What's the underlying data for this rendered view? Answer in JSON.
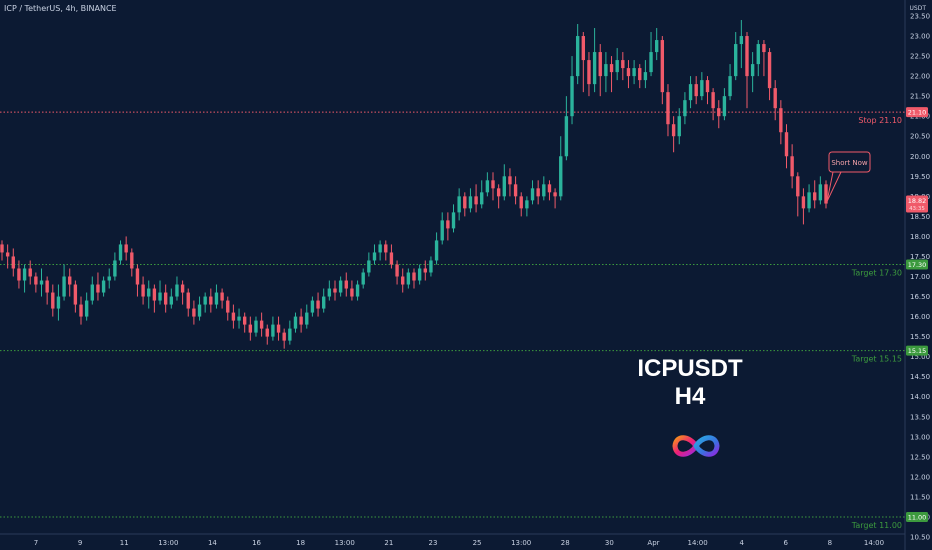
{
  "header": {
    "symbol": "ICP / TetherUS, 4h, BINANCE",
    "unit": "USDT"
  },
  "overlay": {
    "line1": "ICPUSDT",
    "line2": "H4",
    "logo_icon": "icp-infinity-logo-icon"
  },
  "colors": {
    "background": "#0c1a33",
    "up": "#2bb39c",
    "down": "#f05a6a",
    "stop": "#f05a6a",
    "target": "#3c9a3e"
  },
  "chart_data": {
    "type": "candlestick",
    "y_axis": {
      "min": 10.5,
      "max": 23.5,
      "ticks": [
        "10.50",
        "11.00",
        "11.50",
        "12.00",
        "12.50",
        "13.00",
        "13.50",
        "14.00",
        "14.50",
        "15.00",
        "15.50",
        "16.00",
        "16.50",
        "17.00",
        "17.50",
        "18.00",
        "18.50",
        "19.00",
        "19.50",
        "20.00",
        "20.50",
        "21.00",
        "21.50",
        "22.00",
        "22.50",
        "23.00",
        "23.50"
      ]
    },
    "x_axis": {
      "labels": [
        "7",
        "9",
        "11",
        "13:00",
        "14",
        "16",
        "18",
        "13:00",
        "21",
        "23",
        "25",
        "13:00",
        "28",
        "30",
        "Apr",
        "14:00",
        "4",
        "6",
        "8",
        "14:00"
      ]
    },
    "levels": [
      {
        "name": "Stop",
        "label": "Stop 21.10",
        "value": 21.1,
        "badge": "21.10",
        "kind": "stop"
      },
      {
        "name": "Target 1",
        "label": "Target 17.30",
        "value": 17.3,
        "badge": "17.30",
        "kind": "target"
      },
      {
        "name": "Target 2",
        "label": "Target 15.15",
        "value": 15.15,
        "badge": "15.15",
        "kind": "target"
      },
      {
        "name": "Target 3",
        "label": "Target 11.00",
        "value": 11.0,
        "badge": "11.00",
        "kind": "target"
      }
    ],
    "current_price": {
      "value": 18.82,
      "label": "18.82",
      "countdown": "43:35"
    },
    "annotation": {
      "text": "Short Now"
    },
    "candles": [
      [
        17.8,
        17.6,
        17.9,
        17.4
      ],
      [
        17.6,
        17.5,
        17.8,
        17.2
      ],
      [
        17.5,
        17.2,
        17.7,
        17.0
      ],
      [
        17.2,
        16.9,
        17.4,
        16.7
      ],
      [
        16.9,
        17.2,
        17.3,
        16.6
      ],
      [
        17.2,
        17.0,
        17.4,
        16.8
      ],
      [
        17.0,
        16.8,
        17.1,
        16.6
      ],
      [
        16.8,
        16.9,
        17.2,
        16.5
      ],
      [
        16.9,
        16.6,
        17.0,
        16.3
      ],
      [
        16.6,
        16.2,
        16.8,
        16.0
      ],
      [
        16.2,
        16.5,
        16.8,
        15.9
      ],
      [
        16.5,
        17.0,
        17.3,
        16.4
      ],
      [
        17.0,
        16.8,
        17.2,
        16.5
      ],
      [
        16.8,
        16.3,
        16.9,
        16.1
      ],
      [
        16.3,
        16.0,
        16.5,
        15.8
      ],
      [
        16.0,
        16.4,
        16.6,
        15.9
      ],
      [
        16.4,
        16.8,
        17.0,
        16.3
      ],
      [
        16.8,
        16.6,
        17.1,
        16.4
      ],
      [
        16.6,
        16.9,
        17.0,
        16.5
      ],
      [
        16.9,
        17.0,
        17.2,
        16.7
      ],
      [
        17.0,
        17.4,
        17.6,
        16.9
      ],
      [
        17.4,
        17.8,
        17.9,
        17.3
      ],
      [
        17.8,
        17.6,
        18.0,
        17.4
      ],
      [
        17.6,
        17.2,
        17.7,
        17.0
      ],
      [
        17.2,
        16.8,
        17.3,
        16.5
      ],
      [
        16.8,
        16.5,
        17.0,
        16.3
      ],
      [
        16.5,
        16.7,
        16.9,
        16.2
      ],
      [
        16.7,
        16.4,
        16.8,
        16.1
      ],
      [
        16.4,
        16.6,
        16.9,
        16.3
      ],
      [
        16.6,
        16.3,
        16.8,
        16.1
      ],
      [
        16.3,
        16.5,
        16.7,
        16.2
      ],
      [
        16.5,
        16.8,
        17.0,
        16.4
      ],
      [
        16.8,
        16.6,
        16.9,
        16.3
      ],
      [
        16.6,
        16.2,
        16.7,
        16.0
      ],
      [
        16.2,
        16.0,
        16.4,
        15.8
      ],
      [
        16.0,
        16.3,
        16.5,
        15.9
      ],
      [
        16.3,
        16.5,
        16.6,
        16.1
      ],
      [
        16.5,
        16.3,
        16.7,
        16.1
      ],
      [
        16.3,
        16.6,
        16.8,
        16.2
      ],
      [
        16.6,
        16.4,
        16.7,
        16.2
      ],
      [
        16.4,
        16.1,
        16.5,
        15.9
      ],
      [
        16.1,
        15.9,
        16.3,
        15.7
      ],
      [
        15.9,
        16.0,
        16.2,
        15.7
      ],
      [
        16.0,
        15.8,
        16.1,
        15.6
      ],
      [
        15.8,
        15.6,
        16.0,
        15.4
      ],
      [
        15.6,
        15.9,
        16.0,
        15.5
      ],
      [
        15.9,
        15.7,
        16.1,
        15.5
      ],
      [
        15.7,
        15.5,
        15.8,
        15.3
      ],
      [
        15.5,
        15.8,
        16.0,
        15.4
      ],
      [
        15.8,
        15.6,
        16.0,
        15.4
      ],
      [
        15.6,
        15.4,
        15.7,
        15.2
      ],
      [
        15.4,
        15.7,
        15.9,
        15.3
      ],
      [
        15.7,
        16.0,
        16.1,
        15.6
      ],
      [
        16.0,
        15.8,
        16.2,
        15.6
      ],
      [
        15.8,
        16.1,
        16.3,
        15.7
      ],
      [
        16.1,
        16.4,
        16.5,
        16.0
      ],
      [
        16.4,
        16.2,
        16.6,
        16.0
      ],
      [
        16.2,
        16.5,
        16.7,
        16.1
      ],
      [
        16.5,
        16.7,
        16.9,
        16.4
      ],
      [
        16.7,
        16.6,
        16.9,
        16.4
      ],
      [
        16.6,
        16.9,
        17.0,
        16.5
      ],
      [
        16.9,
        16.7,
        17.1,
        16.5
      ],
      [
        16.7,
        16.5,
        16.9,
        16.4
      ],
      [
        16.5,
        16.8,
        16.9,
        16.4
      ],
      [
        16.8,
        17.1,
        17.2,
        16.7
      ],
      [
        17.1,
        17.4,
        17.6,
        17.0
      ],
      [
        17.4,
        17.6,
        17.8,
        17.3
      ],
      [
        17.6,
        17.8,
        17.9,
        17.4
      ],
      [
        17.8,
        17.6,
        17.9,
        17.4
      ],
      [
        17.6,
        17.3,
        17.8,
        17.2
      ],
      [
        17.3,
        17.0,
        17.4,
        16.8
      ],
      [
        17.0,
        16.8,
        17.2,
        16.6
      ],
      [
        16.8,
        17.1,
        17.2,
        16.7
      ],
      [
        17.1,
        16.9,
        17.2,
        16.7
      ],
      [
        16.9,
        17.2,
        17.3,
        16.8
      ],
      [
        17.2,
        17.1,
        17.4,
        16.9
      ],
      [
        17.1,
        17.4,
        17.5,
        17.0
      ],
      [
        17.4,
        17.9,
        18.1,
        17.3
      ],
      [
        17.9,
        18.4,
        18.6,
        17.8
      ],
      [
        18.4,
        18.2,
        18.6,
        17.9
      ],
      [
        18.2,
        18.6,
        18.8,
        18.1
      ],
      [
        18.6,
        19.0,
        19.2,
        18.4
      ],
      [
        19.0,
        18.7,
        19.1,
        18.5
      ],
      [
        18.7,
        19.0,
        19.2,
        18.6
      ],
      [
        19.0,
        18.8,
        19.3,
        18.6
      ],
      [
        18.8,
        19.1,
        19.4,
        18.7
      ],
      [
        19.1,
        19.4,
        19.6,
        19.0
      ],
      [
        19.4,
        19.2,
        19.6,
        18.9
      ],
      [
        19.2,
        19.0,
        19.3,
        18.7
      ],
      [
        19.0,
        19.5,
        19.8,
        18.9
      ],
      [
        19.5,
        19.3,
        19.7,
        19.0
      ],
      [
        19.3,
        19.0,
        19.5,
        18.8
      ],
      [
        19.0,
        18.7,
        19.1,
        18.5
      ],
      [
        18.7,
        18.9,
        19.0,
        18.5
      ],
      [
        18.9,
        19.2,
        19.4,
        18.8
      ],
      [
        19.2,
        19.0,
        19.4,
        18.8
      ],
      [
        19.0,
        19.3,
        19.5,
        18.9
      ],
      [
        19.3,
        19.1,
        19.4,
        18.9
      ],
      [
        19.1,
        19.0,
        19.2,
        18.7
      ],
      [
        19.0,
        20.0,
        20.5,
        18.9
      ],
      [
        20.0,
        21.0,
        21.5,
        19.9
      ],
      [
        21.0,
        22.0,
        22.5,
        20.8
      ],
      [
        22.0,
        23.0,
        23.3,
        21.8
      ],
      [
        23.0,
        22.4,
        23.1,
        21.6
      ],
      [
        22.4,
        21.8,
        22.6,
        21.5
      ],
      [
        21.8,
        22.6,
        23.2,
        21.6
      ],
      [
        22.6,
        22.0,
        22.8,
        21.5
      ],
      [
        22.0,
        22.3,
        22.6,
        21.6
      ],
      [
        22.3,
        22.1,
        22.5,
        21.6
      ],
      [
        22.1,
        22.4,
        22.7,
        21.9
      ],
      [
        22.4,
        22.2,
        22.6,
        21.9
      ],
      [
        22.2,
        22.0,
        22.4,
        21.7
      ],
      [
        22.0,
        22.2,
        22.4,
        21.8
      ],
      [
        22.2,
        21.9,
        22.3,
        21.7
      ],
      [
        21.9,
        22.1,
        22.4,
        21.7
      ],
      [
        22.1,
        22.6,
        23.1,
        22.0
      ],
      [
        22.6,
        22.9,
        23.2,
        22.4
      ],
      [
        22.9,
        21.6,
        23.0,
        21.3
      ],
      [
        21.6,
        20.8,
        21.8,
        20.5
      ],
      [
        20.8,
        20.5,
        21.0,
        20.1
      ],
      [
        20.5,
        21.0,
        21.2,
        20.3
      ],
      [
        21.0,
        21.4,
        21.6,
        20.8
      ],
      [
        21.4,
        21.8,
        22.0,
        21.2
      ],
      [
        21.8,
        21.5,
        22.0,
        21.3
      ],
      [
        21.5,
        21.9,
        22.1,
        21.4
      ],
      [
        21.9,
        21.6,
        22.0,
        21.3
      ],
      [
        21.6,
        21.2,
        21.7,
        20.9
      ],
      [
        21.2,
        21.0,
        21.4,
        20.7
      ],
      [
        21.0,
        21.5,
        21.7,
        20.9
      ],
      [
        21.5,
        22.0,
        22.3,
        21.4
      ],
      [
        22.0,
        22.8,
        23.1,
        21.9
      ],
      [
        22.8,
        23.0,
        23.4,
        22.2
      ],
      [
        23.0,
        22.0,
        23.1,
        21.2
      ],
      [
        22.0,
        22.3,
        22.6,
        21.6
      ],
      [
        22.3,
        22.8,
        22.9,
        22.0
      ],
      [
        22.8,
        22.6,
        22.9,
        22.0
      ],
      [
        22.6,
        21.7,
        22.7,
        21.4
      ],
      [
        21.7,
        21.2,
        21.9,
        20.9
      ],
      [
        21.2,
        20.6,
        21.4,
        20.3
      ],
      [
        20.6,
        20.0,
        20.8,
        19.7
      ],
      [
        20.0,
        19.5,
        20.3,
        19.2
      ],
      [
        19.5,
        19.0,
        19.6,
        18.5
      ],
      [
        19.0,
        18.7,
        19.2,
        18.3
      ],
      [
        18.7,
        19.1,
        19.3,
        18.6
      ],
      [
        19.1,
        18.9,
        19.4,
        18.7
      ],
      [
        18.9,
        19.3,
        19.5,
        18.8
      ],
      [
        19.3,
        18.82,
        19.4,
        18.7
      ]
    ]
  }
}
